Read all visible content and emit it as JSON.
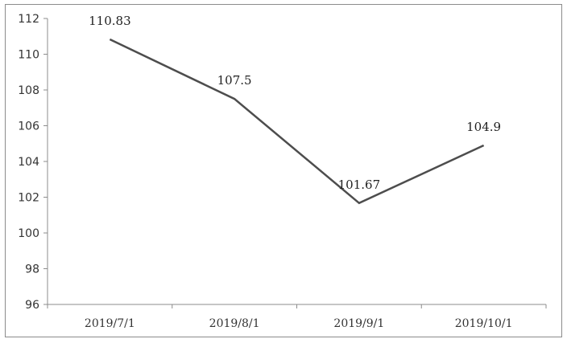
{
  "chart_data": {
    "type": "line",
    "title": "",
    "xlabel": "",
    "ylabel": "",
    "categories": [
      "2019/7/1",
      "2019/8/1",
      "2019/9/1",
      "2019/10/1"
    ],
    "series": [
      {
        "values": [
          110.83,
          107.5,
          101.67,
          104.9
        ],
        "data_labels": [
          "110.83",
          "107.5",
          "101.67",
          "104.9"
        ],
        "color": "#4d4d4d"
      }
    ],
    "ylim": [
      96,
      112
    ],
    "yticks": [
      96,
      98,
      100,
      102,
      104,
      106,
      108,
      110,
      112
    ],
    "ytick_labels": [
      "96",
      "98",
      "100",
      "102",
      "104",
      "106",
      "108",
      "110",
      "112"
    ],
    "grid": false,
    "legend": "none"
  }
}
